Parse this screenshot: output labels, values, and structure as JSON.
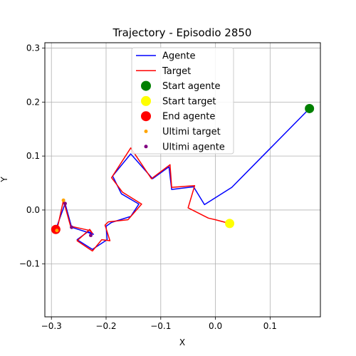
{
  "chart_data": {
    "type": "line",
    "title": "Trajectory - Episodio 2850",
    "xlabel": "X",
    "ylabel": "Y",
    "xlim": [
      -0.312,
      0.192
    ],
    "ylim": [
      -0.198,
      0.31
    ],
    "xticks": [
      -0.3,
      -0.2,
      -0.1,
      0.0,
      0.1
    ],
    "xtick_labels": [
      "−0.3",
      "−0.2",
      "−0.1",
      "0.0",
      "0.1"
    ],
    "yticks": [
      -0.1,
      0.0,
      0.1,
      0.2,
      0.3
    ],
    "ytick_labels": [
      "−0.1",
      "0.0",
      "0.1",
      "0.2",
      "0.3"
    ],
    "grid": true,
    "legend_position": "top-center",
    "series": [
      {
        "name": "Agente",
        "kind": "line",
        "color": "#0000ff",
        "points": [
          [
            0.172,
            0.188
          ],
          [
            0.03,
            0.042
          ],
          [
            -0.02,
            0.01
          ],
          [
            -0.04,
            0.043
          ],
          [
            -0.08,
            0.038
          ],
          [
            -0.085,
            0.08
          ],
          [
            -0.115,
            0.058
          ],
          [
            -0.155,
            0.104
          ],
          [
            -0.188,
            0.063
          ],
          [
            -0.172,
            0.03
          ],
          [
            -0.14,
            0.011
          ],
          [
            -0.155,
            -0.012
          ],
          [
            -0.19,
            -0.023
          ],
          [
            -0.2,
            -0.03
          ],
          [
            -0.198,
            -0.055
          ],
          [
            -0.225,
            -0.073
          ],
          [
            -0.253,
            -0.055
          ],
          [
            -0.233,
            -0.04
          ],
          [
            -0.223,
            -0.045
          ],
          [
            -0.263,
            -0.032
          ],
          [
            -0.275,
            0.012
          ],
          [
            -0.292,
            -0.036
          ]
        ]
      },
      {
        "name": "Target",
        "kind": "line",
        "color": "#ff0000",
        "points": [
          [
            0.026,
            -0.025
          ],
          [
            0.0,
            -0.018
          ],
          [
            -0.013,
            -0.015
          ],
          [
            -0.05,
            0.004
          ],
          [
            -0.038,
            0.045
          ],
          [
            -0.08,
            0.042
          ],
          [
            -0.083,
            0.084
          ],
          [
            -0.117,
            0.058
          ],
          [
            -0.155,
            0.115
          ],
          [
            -0.19,
            0.06
          ],
          [
            -0.17,
            0.033
          ],
          [
            -0.135,
            0.011
          ],
          [
            -0.16,
            -0.018
          ],
          [
            -0.196,
            -0.022
          ],
          [
            -0.202,
            -0.028
          ],
          [
            -0.193,
            -0.057
          ],
          [
            -0.208,
            -0.055
          ],
          [
            -0.225,
            -0.076
          ],
          [
            -0.253,
            -0.057
          ],
          [
            -0.23,
            -0.036
          ],
          [
            -0.225,
            -0.043
          ],
          [
            -0.23,
            -0.038
          ],
          [
            -0.265,
            -0.03
          ],
          [
            -0.278,
            0.018
          ],
          [
            -0.29,
            -0.038
          ]
        ]
      },
      {
        "name": "Start agente",
        "kind": "marker",
        "color": "#008000",
        "size": "large",
        "points": [
          [
            0.172,
            0.188
          ]
        ]
      },
      {
        "name": "Start target",
        "kind": "marker",
        "color": "#ffff00",
        "size": "large",
        "points": [
          [
            0.026,
            -0.025
          ]
        ]
      },
      {
        "name": "End agente",
        "kind": "marker",
        "color": "#ff0000",
        "size": "large",
        "points": [
          [
            -0.292,
            -0.036
          ]
        ]
      },
      {
        "name": "Ultimi target",
        "kind": "marker",
        "color": "#ffa500",
        "size": "small",
        "points": [
          [
            -0.278,
            0.018
          ],
          [
            -0.29,
            -0.038
          ]
        ]
      },
      {
        "name": "Ultimi agente",
        "kind": "marker",
        "color": "#800080",
        "size": "small",
        "points": [
          [
            -0.275,
            0.012
          ],
          [
            -0.263,
            -0.032
          ],
          [
            -0.228,
            -0.047
          ]
        ]
      }
    ]
  }
}
